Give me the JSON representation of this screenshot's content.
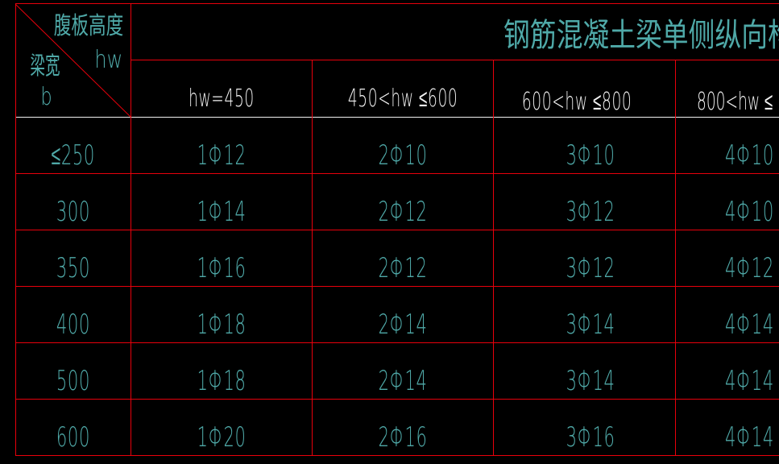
{
  "table": {
    "corner": {
      "top_label": "腹板高度",
      "top_symbol": "hw",
      "left_label": "梁宽",
      "left_symbol": "b"
    },
    "title": "钢筋混凝土梁单侧纵向构造钢筋",
    "column_headers": [
      "hw=450",
      "450<hw ≤600",
      "600<hw ≤800",
      "800<hw ≤"
    ],
    "rows": [
      {
        "width": "≤250",
        "values": [
          "1Φ12",
          "2Φ10",
          "3Φ10",
          "4Φ10"
        ]
      },
      {
        "width": "300",
        "values": [
          "1Φ14",
          "2Φ12",
          "3Φ12",
          "4Φ10"
        ]
      },
      {
        "width": "350",
        "values": [
          "1Φ16",
          "2Φ12",
          "3Φ12",
          "4Φ12"
        ]
      },
      {
        "width": "400",
        "values": [
          "1Φ18",
          "2Φ14",
          "3Φ14",
          "4Φ14"
        ]
      },
      {
        "width": "500",
        "values": [
          "1Φ18",
          "2Φ14",
          "3Φ14",
          "4Φ14"
        ]
      },
      {
        "width": "600",
        "values": [
          "1Φ20",
          "2Φ16",
          "3Φ16",
          "4Φ14"
        ]
      }
    ]
  },
  "colors": {
    "grid": "#e8000b",
    "text": "#4fa9a8",
    "header_text": "#f2f2f2"
  }
}
